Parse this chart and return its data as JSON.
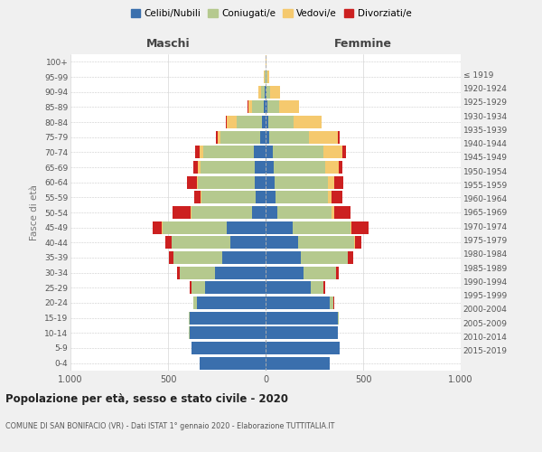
{
  "age_groups": [
    "0-4",
    "5-9",
    "10-14",
    "15-19",
    "20-24",
    "25-29",
    "30-34",
    "35-39",
    "40-44",
    "45-49",
    "50-54",
    "55-59",
    "60-64",
    "65-69",
    "70-74",
    "75-79",
    "80-84",
    "85-89",
    "90-94",
    "95-99",
    "100+"
  ],
  "birth_years": [
    "2015-2019",
    "2010-2014",
    "2005-2009",
    "2000-2004",
    "1995-1999",
    "1990-1994",
    "1985-1989",
    "1980-1984",
    "1975-1979",
    "1970-1974",
    "1965-1969",
    "1960-1964",
    "1955-1959",
    "1950-1954",
    "1945-1949",
    "1940-1944",
    "1935-1939",
    "1930-1934",
    "1925-1929",
    "1920-1924",
    "≤ 1919"
  ],
  "maschi": {
    "celibi": [
      340,
      380,
      390,
      390,
      350,
      310,
      260,
      220,
      180,
      200,
      70,
      50,
      55,
      55,
      60,
      30,
      20,
      10,
      5,
      2,
      0
    ],
    "coniugati": [
      0,
      1,
      2,
      5,
      20,
      70,
      180,
      250,
      300,
      330,
      310,
      280,
      290,
      280,
      260,
      200,
      130,
      60,
      20,
      3,
      1
    ],
    "vedovi": [
      0,
      0,
      0,
      0,
      0,
      0,
      1,
      1,
      2,
      3,
      5,
      3,
      5,
      10,
      20,
      15,
      50,
      20,
      10,
      2,
      0
    ],
    "divorziati": [
      0,
      0,
      0,
      0,
      2,
      8,
      15,
      25,
      30,
      45,
      90,
      35,
      55,
      25,
      20,
      8,
      3,
      2,
      1,
      0,
      0
    ]
  },
  "femmine": {
    "nubili": [
      330,
      380,
      370,
      370,
      330,
      230,
      195,
      180,
      165,
      140,
      60,
      50,
      45,
      40,
      35,
      20,
      15,
      10,
      5,
      2,
      0
    ],
    "coniugate": [
      0,
      1,
      2,
      4,
      18,
      65,
      165,
      240,
      290,
      295,
      280,
      270,
      275,
      265,
      260,
      200,
      130,
      60,
      20,
      5,
      1
    ],
    "vedove": [
      0,
      0,
      0,
      0,
      0,
      1,
      1,
      2,
      3,
      5,
      10,
      20,
      30,
      70,
      100,
      150,
      140,
      100,
      50,
      10,
      2
    ],
    "divorziate": [
      0,
      0,
      0,
      0,
      2,
      8,
      15,
      25,
      35,
      90,
      85,
      55,
      50,
      20,
      15,
      10,
      3,
      2,
      1,
      0,
      0
    ]
  },
  "colors": {
    "celibi_nubili": "#3a6fad",
    "coniugati_e": "#b5c98e",
    "vedovi_e": "#f5c96e",
    "divorziati_e": "#cc2020"
  },
  "title": "Popolazione per età, sesso e stato civile - 2020",
  "subtitle": "COMUNE DI SAN BONIFACIO (VR) - Dati ISTAT 1° gennaio 2020 - Elaborazione TUTTITALIA.IT",
  "xlabel_left": "Maschi",
  "xlabel_right": "Femmine",
  "ylabel_left": "Fasce di età",
  "xlim": 1000,
  "background_color": "#f0f0f0",
  "plot_background": "#ffffff",
  "legend_labels": [
    "Celibi/Nubili",
    "Coniugati/e",
    "Vedovi/e",
    "Divorziati/e"
  ]
}
